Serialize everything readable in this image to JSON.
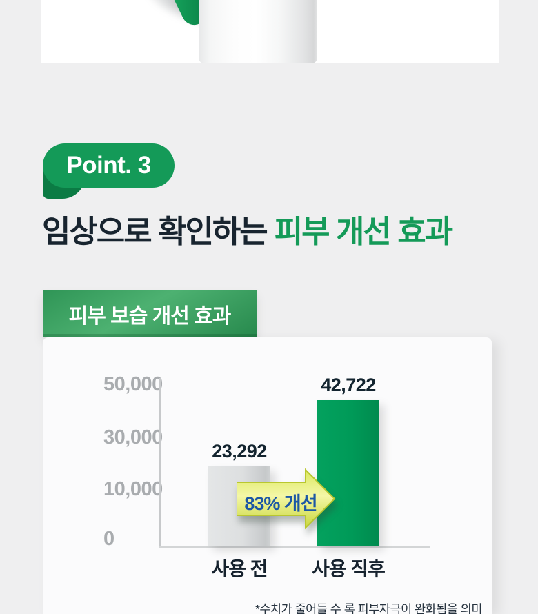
{
  "badge": {
    "label": "Point. 3"
  },
  "heading": {
    "normal": "임상으로 확인하는",
    "highlight": "피부 개선 효과"
  },
  "colors": {
    "brand_green": "#149a58",
    "dark_green_fold": "#0b7b44",
    "dark_navy": "#18242f",
    "bar_gray": "#d6d9da",
    "bar_green": "#009a58",
    "arrow_yellow": "#e8ef6e",
    "arrow_text_blue": "#1c57a5",
    "axis_gray": "#c7c9cb",
    "tick_label_gray": "#a9acaf",
    "page_background": "#efeff0",
    "card_background": "#fbfbfc"
  },
  "chart_data": {
    "type": "bar",
    "title": "피부 보습 개선 효과",
    "categories": [
      "사용 전",
      "사용 직후"
    ],
    "values": [
      23292,
      42722
    ],
    "value_labels": [
      "23,292",
      "42,722"
    ],
    "bar_colors": [
      "#d6d9da",
      "#009a58"
    ],
    "y_tick_labels": [
      "50,000",
      "30,000",
      "10,000",
      "0"
    ],
    "y_ticks": [
      50000,
      30000,
      10000,
      0
    ],
    "ylim": [
      0,
      50000
    ],
    "xlabel": "",
    "ylabel": "",
    "grid": false,
    "legend": "none",
    "annotation": {
      "text": "83% 개선",
      "style": "arrow-right"
    },
    "footnote": "*수치가 줄어들 수 록 피부자극이 완화됨을 의미"
  }
}
